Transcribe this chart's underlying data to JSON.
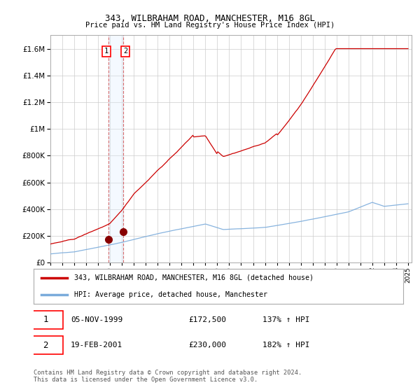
{
  "title": "343, WILBRAHAM ROAD, MANCHESTER, M16 8GL",
  "subtitle": "Price paid vs. HM Land Registry's House Price Index (HPI)",
  "ylim": [
    0,
    1700000
  ],
  "yticks": [
    0,
    200000,
    400000,
    600000,
    800000,
    1000000,
    1200000,
    1400000,
    1600000
  ],
  "background_color": "#ffffff",
  "plot_bg_color": "#ffffff",
  "grid_color": "#cccccc",
  "sale1": {
    "date_num": 1999.85,
    "price": 172500,
    "label": "1",
    "date_str": "05-NOV-1999",
    "hpi_pct": "137%"
  },
  "sale2": {
    "date_num": 2001.13,
    "price": 230000,
    "label": "2",
    "date_str": "19-FEB-2001",
    "hpi_pct": "182%"
  },
  "property_line_color": "#cc0000",
  "hpi_line_color": "#7aabdb",
  "shaded_color": "#ddeeff",
  "legend_property_label": "343, WILBRAHAM ROAD, MANCHESTER, M16 8GL (detached house)",
  "legend_hpi_label": "HPI: Average price, detached house, Manchester",
  "footer": "Contains HM Land Registry data © Crown copyright and database right 2024.\nThis data is licensed under the Open Government Licence v3.0.",
  "table_row1": [
    "1",
    "05-NOV-1999",
    "£172,500",
    "137% ↑ HPI"
  ],
  "table_row2": [
    "2",
    "19-FEB-2001",
    "£230,000",
    "182% ↑ HPI"
  ]
}
